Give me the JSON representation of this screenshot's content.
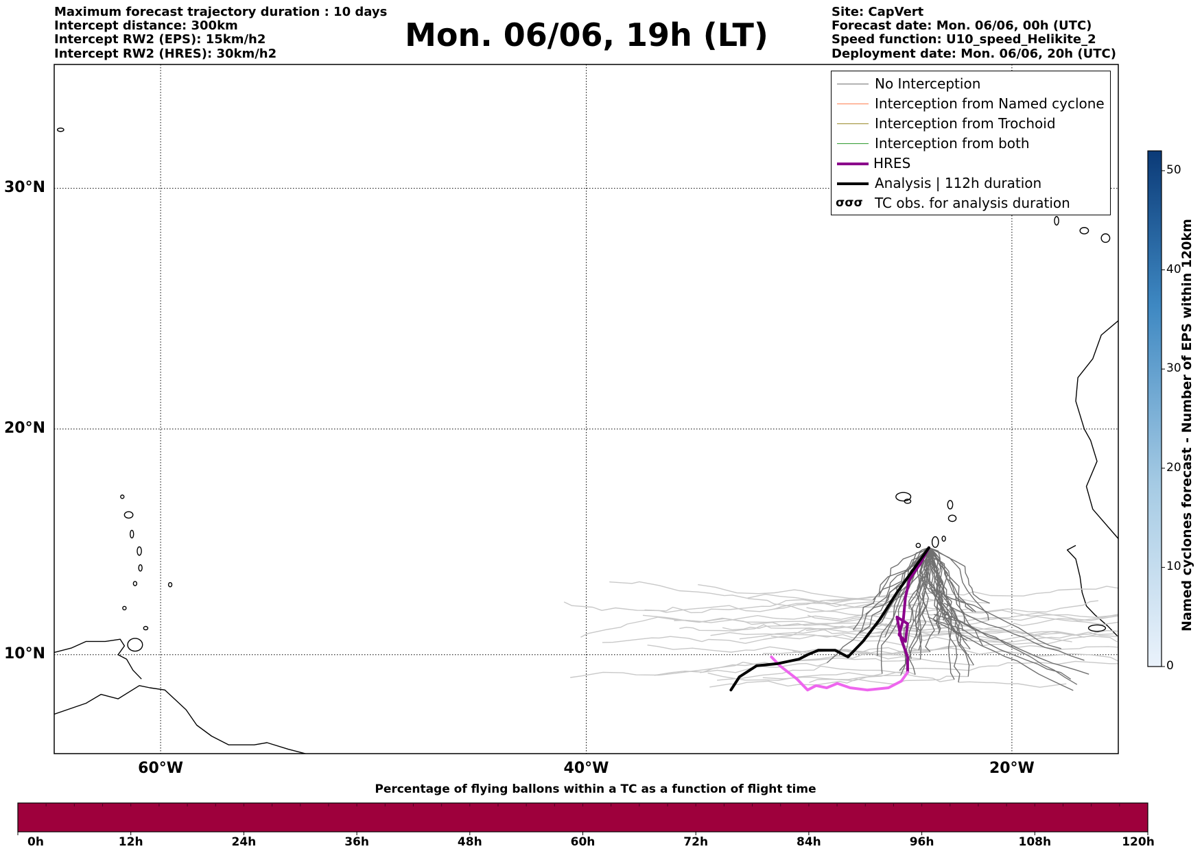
{
  "header": {
    "left_lines": [
      "Maximum forecast trajectory duration : 10 days",
      "Intercept distance: 300km",
      "Intercept RW2 (EPS):  15km/h2",
      "Intercept RW2 (HRES): 30km/h2"
    ],
    "title": "Mon. 06/06, 19h (LT)",
    "right_lines": [
      "Site: CapVert",
      "Forecast date: Mon. 06/06, 00h (UTC)",
      "Speed function: U10_speed_Helikite_2",
      "Deployment date: Mon. 06/06, 20h (UTC)"
    ]
  },
  "map": {
    "lon_range": [
      -65,
      -15
    ],
    "lat_range": [
      5.5,
      34.8
    ],
    "lat_labels": [
      {
        "value": 30,
        "text": "30°N"
      },
      {
        "value": 20,
        "text": "20°N"
      },
      {
        "value": 10,
        "text": "10°N"
      }
    ],
    "lon_labels": [
      {
        "value": -60,
        "text": "60°W"
      },
      {
        "value": -40,
        "text": "40°W"
      },
      {
        "value": -20,
        "text": "20°W"
      }
    ],
    "colors": {
      "no_interception": "#707070",
      "eps_faded": "#c8c8c8",
      "named_cyclone": "#ff7f50",
      "trochoid": "#9a8a2a",
      "both": "#2e9a2e",
      "hres": "#8b008b",
      "hres_faded": "#ee66ee",
      "analysis": "#000000"
    },
    "analysis_track": [
      [
        -23.9,
        14.8
      ],
      [
        -24.5,
        14.0
      ],
      [
        -25.4,
        12.8
      ],
      [
        -26.2,
        11.6
      ],
      [
        -27.0,
        10.6
      ],
      [
        -27.7,
        9.9
      ],
      [
        -28.3,
        10.2
      ],
      [
        -29.1,
        10.2
      ],
      [
        -29.6,
        10.0
      ],
      [
        -30.0,
        9.8
      ],
      [
        -31.0,
        9.6
      ],
      [
        -32.0,
        9.5
      ],
      [
        -32.8,
        9.0
      ],
      [
        -33.2,
        8.4
      ]
    ],
    "hres_track": [
      [
        -23.9,
        14.8
      ],
      [
        -24.3,
        14.1
      ],
      [
        -24.8,
        13.4
      ],
      [
        -25.0,
        12.6
      ],
      [
        -25.1,
        11.6
      ],
      [
        -25.3,
        10.9
      ],
      [
        -25.0,
        10.6
      ],
      [
        -24.9,
        11.4
      ],
      [
        -25.4,
        11.7
      ],
      [
        -25.2,
        10.7
      ],
      [
        -24.9,
        9.9
      ],
      [
        -24.9,
        9.2
      ],
      [
        -25.2,
        8.8
      ],
      [
        -25.8,
        8.5
      ],
      [
        -26.8,
        8.4
      ],
      [
        -27.6,
        8.5
      ],
      [
        -28.2,
        8.7
      ],
      [
        -28.7,
        8.5
      ],
      [
        -29.2,
        8.6
      ],
      [
        -29.6,
        8.4
      ],
      [
        -30.1,
        8.9
      ],
      [
        -30.9,
        9.5
      ],
      [
        -31.3,
        9.9
      ]
    ]
  },
  "legend": {
    "items": [
      {
        "label": "No Interception",
        "color": "#707070",
        "width": 1.2
      },
      {
        "label": "Interception from Named cyclone",
        "color": "#ff7f50",
        "width": 1.2
      },
      {
        "label": "Interception from Trochoid",
        "color": "#9a8a2a",
        "width": 1.2
      },
      {
        "label": "Interception from both",
        "color": "#2e9a2e",
        "width": 1.2
      },
      {
        "label": "HRES",
        "color": "#8b008b",
        "width": 4
      },
      {
        "label": "Analysis | 112h duration",
        "color": "#000000",
        "width": 4
      }
    ],
    "tc_label": "TC obs. for analysis duration",
    "tc_glyph": "σσσ"
  },
  "colorbar_vertical": {
    "title": "Named cyclones forecast - Number of EPS within 120km",
    "ticks": [
      "0",
      "10",
      "20",
      "30",
      "40",
      "50"
    ],
    "max": 52,
    "color_low": "#eaf2fb",
    "color_high": "#0b3a77"
  },
  "colorbar_horizontal": {
    "title": "Percentage of flying ballons within a TC as a function of flight time",
    "ticks": [
      "0h",
      "12h",
      "24h",
      "36h",
      "48h",
      "60h",
      "72h",
      "84h",
      "96h",
      "108h",
      "120h"
    ],
    "fill_color": "#9e003c"
  }
}
